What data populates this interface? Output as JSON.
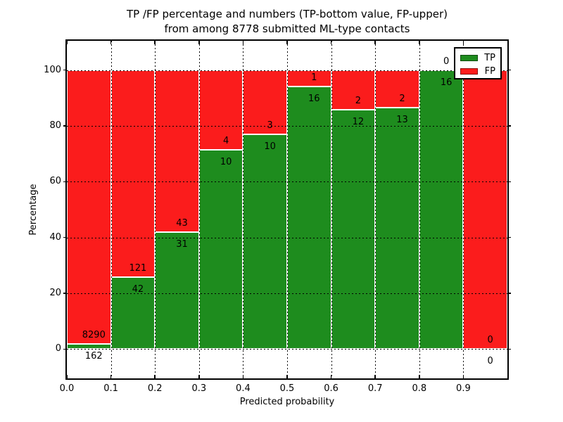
{
  "title": {
    "line1": "TP /FP percentage and numbers (TP-bottom value, FP-upper)",
    "line2": "from among 8778 submitted ML-type contacts"
  },
  "axes": {
    "xlabel": "Predicted probability",
    "ylabel": "Percentage"
  },
  "legend": {
    "items": [
      {
        "label": "TP",
        "color": "#1e8c1e"
      },
      {
        "label": "FP",
        "color": "#fb1c1c"
      }
    ]
  },
  "colors": {
    "background": "#ffffff",
    "frame": "#000000",
    "grid": "#000000",
    "bar_edge": "#ffffff",
    "tp": "#1e8c1e",
    "fp": "#fb1c1c"
  },
  "chart_data": {
    "type": "bar",
    "stacked": true,
    "normalized": "percent_of_bin",
    "title": "TP /FP percentage and numbers (TP-bottom value, FP-upper)\nfrom among 8778 submitted ML-type contacts",
    "xlabel": "Predicted probability",
    "ylabel": "Percentage",
    "xlim": [
      0.0,
      1.0
    ],
    "ylim": [
      -10.5,
      110.5
    ],
    "x_tick_labels": [
      "0.0",
      "0.1",
      "0.2",
      "0.3",
      "0.4",
      "0.5",
      "0.6",
      "0.7",
      "0.8",
      "0.9"
    ],
    "y_tick_values": [
      0,
      20,
      40,
      60,
      80,
      100
    ],
    "grid": "dotted",
    "legend_position": "upper right",
    "total_submitted": 8778,
    "bin_width": 0.1,
    "categories": [
      "0.0-0.1",
      "0.1-0.2",
      "0.2-0.3",
      "0.3-0.4",
      "0.4-0.5",
      "0.5-0.6",
      "0.6-0.7",
      "0.7-0.8",
      "0.8-0.9",
      "0.9-1.0"
    ],
    "series": [
      {
        "name": "TP",
        "color": "#1e8c1e",
        "counts": [
          162,
          42,
          31,
          10,
          10,
          16,
          12,
          13,
          16,
          0
        ]
      },
      {
        "name": "FP",
        "color": "#fb1c1c",
        "counts": [
          8290,
          121,
          43,
          4,
          3,
          1,
          2,
          2,
          0,
          0
        ]
      }
    ]
  }
}
